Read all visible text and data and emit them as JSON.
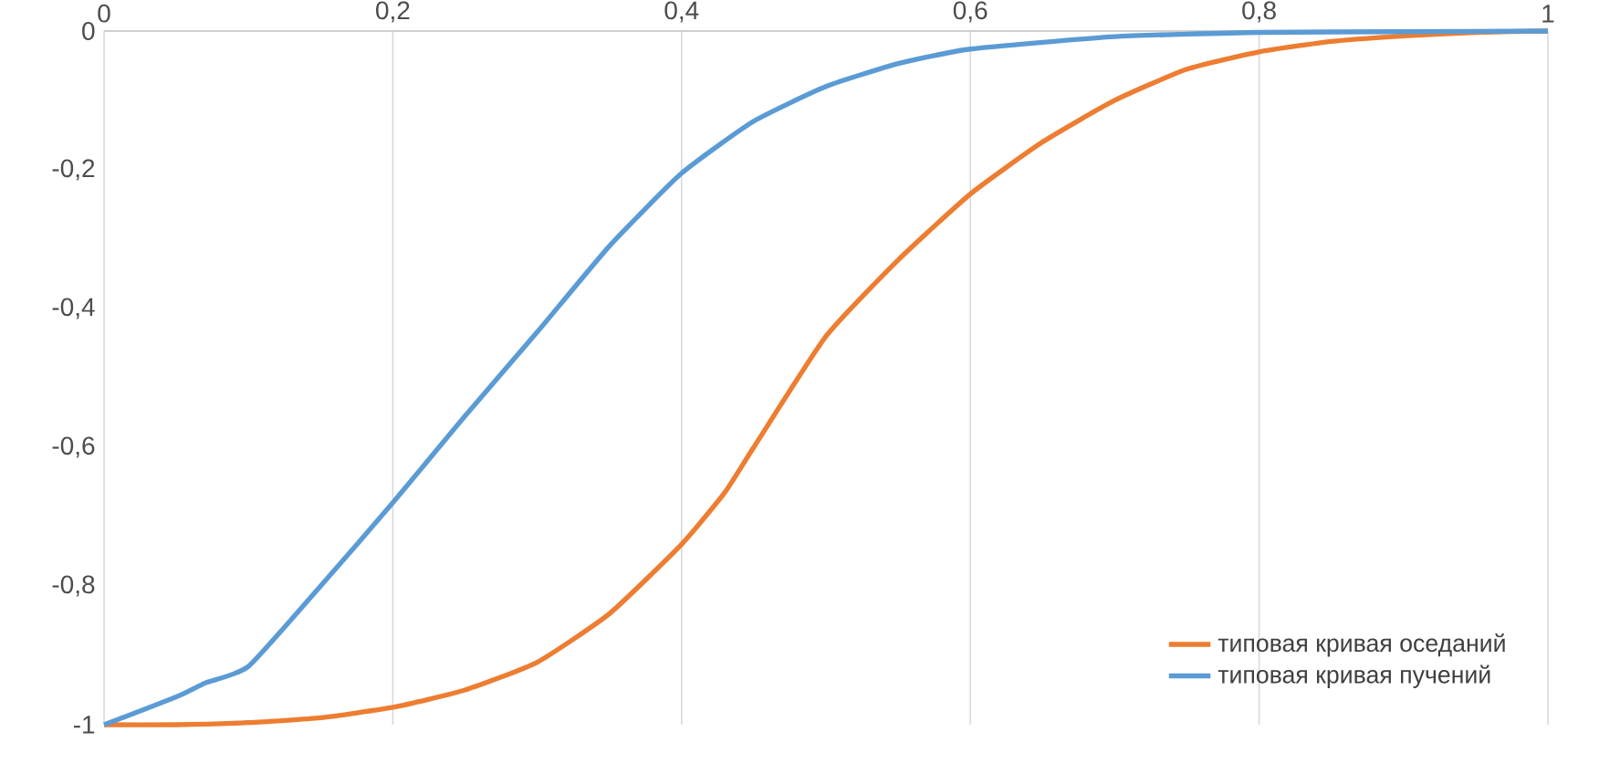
{
  "chart_data": {
    "type": "line",
    "xlim": [
      0,
      1
    ],
    "ylim": [
      -1,
      0
    ],
    "xticks": [
      0,
      {
        "value": 0.2,
        "label": "0,2"
      },
      {
        "value": 0.4,
        "label": "0,4"
      },
      {
        "value": 0.6,
        "label": "0,6"
      },
      {
        "value": 0.8,
        "label": "0,8"
      },
      1
    ],
    "yticks": [
      -1,
      {
        "value": -0.8,
        "label": "-0,8"
      },
      {
        "value": -0.6,
        "label": "-0,6"
      },
      {
        "value": -0.4,
        "label": "-0,4"
      },
      {
        "value": -0.2,
        "label": "-0,2"
      },
      0
    ],
    "grid": "x",
    "legend": "bottom right",
    "line_style": "solid",
    "marker": "none",
    "series": [
      {
        "name": "типовая кривая оседаний",
        "color": "#ed7d31",
        "x": [
          0,
          0.05,
          0.1,
          0.15,
          0.2,
          0.25,
          0.3,
          0.35,
          0.4,
          0.43,
          0.45,
          0.5,
          0.55,
          0.6,
          0.65,
          0.7,
          0.75,
          0.8,
          0.85,
          0.9,
          0.95,
          1
        ],
        "values": [
          -1,
          -1,
          -0.997,
          -0.99,
          -0.975,
          -0.95,
          -0.91,
          -0.84,
          -0.74,
          -0.665,
          -0.6,
          -0.44,
          -0.33,
          -0.235,
          -0.16,
          -0.1,
          -0.055,
          -0.03,
          -0.015,
          -0.007,
          -0.002,
          0
        ]
      },
      {
        "name": "типовая кривая пучений",
        "color": "#5b9bd5",
        "x": [
          0,
          0.05,
          0.07,
          0.1,
          0.15,
          0.2,
          0.25,
          0.3,
          0.35,
          0.4,
          0.45,
          0.5,
          0.55,
          0.6,
          0.7,
          0.8,
          0.9,
          1
        ],
        "values": [
          -1,
          -0.96,
          -0.94,
          -0.916,
          -0.8,
          -0.68,
          -0.555,
          -0.434,
          -0.31,
          -0.205,
          -0.13,
          -0.08,
          -0.047,
          -0.026,
          -0.008,
          -0.002,
          -0.001,
          0
        ]
      }
    ]
  }
}
